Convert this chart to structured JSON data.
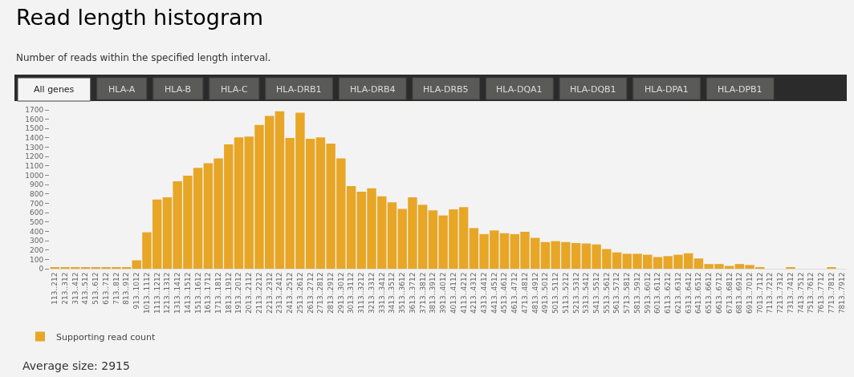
{
  "chart_data": {
    "type": "bar",
    "title": "Read length histogram",
    "subtitle": "Number of reads within the specified length interval.",
    "categories": [
      "113..212",
      "213..312",
      "313..412",
      "413..512",
      "513..612",
      "613..712",
      "713..812",
      "813..912",
      "913..1012",
      "1013..1112",
      "1113..1212",
      "1213..1312",
      "1313..1412",
      "1413..1512",
      "1513..1612",
      "1613..1712",
      "1713..1812",
      "1813..1912",
      "1913..2012",
      "2013..2112",
      "2113..2212",
      "2213..2312",
      "2313..2412",
      "2413..2512",
      "2513..2612",
      "2613..2712",
      "2713..2812",
      "2813..2912",
      "2913..3012",
      "3013..3112",
      "3113..3212",
      "3213..3312",
      "3313..3412",
      "3413..3512",
      "3513..3612",
      "3613..3712",
      "3713..3812",
      "3813..3912",
      "3913..4012",
      "4013..4112",
      "4113..4212",
      "4213..4312",
      "4313..4412",
      "4413..4512",
      "4513..4612",
      "4613..4712",
      "4713..4812",
      "4813..4912",
      "4913..5012",
      "5013..5112",
      "5113..5212",
      "5213..5312",
      "5313..5412",
      "5413..5512",
      "5513..5612",
      "5613..5712",
      "5713..5812",
      "5813..5912",
      "5913..6012",
      "6013..6112",
      "6113..6212",
      "6213..6312",
      "6313..6412",
      "6413..6512",
      "6513..6612",
      "6613..6712",
      "6713..6812",
      "6813..6912",
      "6913..7012",
      "7013..7112",
      "7113..7212",
      "7213..7312",
      "7313..7412",
      "7413..7512",
      "7513..7612",
      "7613..7712",
      "7713..7812",
      "7813..7912"
    ],
    "series": [
      {
        "name": "Supporting read count",
        "color": "#e8a626",
        "values": [
          10,
          10,
          10,
          10,
          10,
          10,
          10,
          10,
          90,
          390,
          740,
          765,
          935,
          995,
          1080,
          1130,
          1180,
          1330,
          1405,
          1415,
          1540,
          1635,
          1685,
          1400,
          1670,
          1390,
          1405,
          1340,
          1180,
          885,
          825,
          860,
          775,
          710,
          640,
          765,
          685,
          625,
          570,
          635,
          660,
          435,
          370,
          410,
          380,
          370,
          395,
          330,
          285,
          295,
          285,
          275,
          270,
          260,
          210,
          175,
          160,
          160,
          150,
          125,
          135,
          150,
          165,
          110,
          50,
          50,
          30,
          50,
          40,
          10,
          0,
          0,
          10,
          0,
          0,
          0,
          10,
          0
        ]
      }
    ],
    "ylim": [
      0,
      1700
    ],
    "yticks": [
      0,
      100,
      200,
      300,
      400,
      500,
      600,
      700,
      800,
      900,
      1000,
      1100,
      1200,
      1300,
      1400,
      1500,
      1600,
      1700
    ],
    "grid": false,
    "legend": "bottom left",
    "annotations": [
      "All genes",
      "HLA-A",
      "HLA-B",
      "HLA-C",
      "HLA-DRB1",
      "HLA-DRB4",
      "HLA-DRB5",
      "HLA-DQA1",
      "HLA-DQB1",
      "HLA-DPA1",
      "HLA-DPB1",
      "Average size: 2915"
    ]
  }
}
